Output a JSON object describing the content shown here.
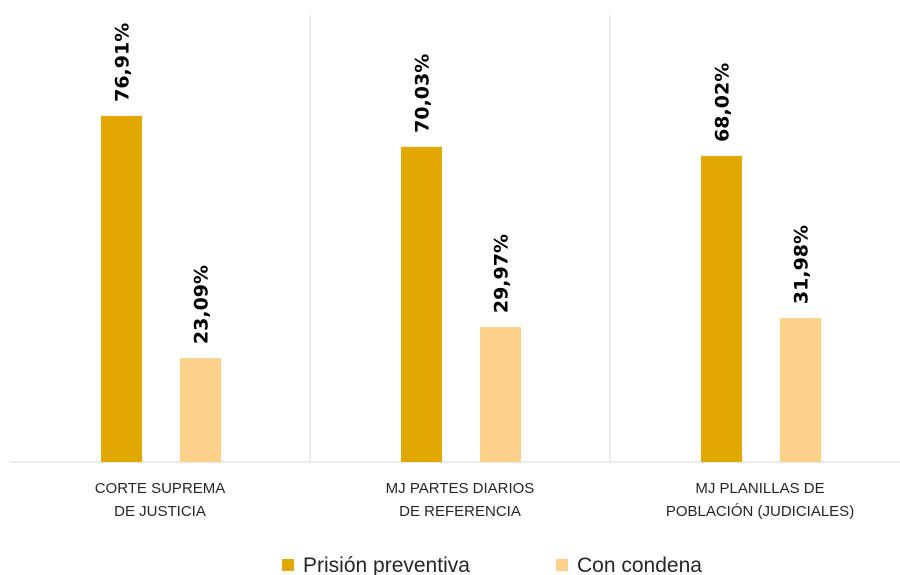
{
  "chart_data": {
    "type": "bar",
    "categories": [
      [
        "CORTE SUPREMA",
        "DE JUSTICIA"
      ],
      [
        "MJ PARTES DIARIOS",
        "DE REFERENCIA"
      ],
      [
        "MJ PLANILLAS DE",
        "POBLACIÓN (JUDICIALES)"
      ]
    ],
    "series": [
      {
        "name": "Prisión preventiva",
        "color": "#E0A800",
        "values": [
          76.91,
          70.03,
          68.02
        ],
        "labels": [
          "76,91%",
          "70,03%",
          "68,02%"
        ]
      },
      {
        "name": "Con condena",
        "color": "#FCD18A",
        "values": [
          23.09,
          29.97,
          31.98
        ],
        "labels": [
          "23,09%",
          "29,97%",
          "31,98%"
        ]
      }
    ],
    "ylim": [
      0,
      100
    ],
    "grid": false,
    "legend_position": "bottom"
  }
}
